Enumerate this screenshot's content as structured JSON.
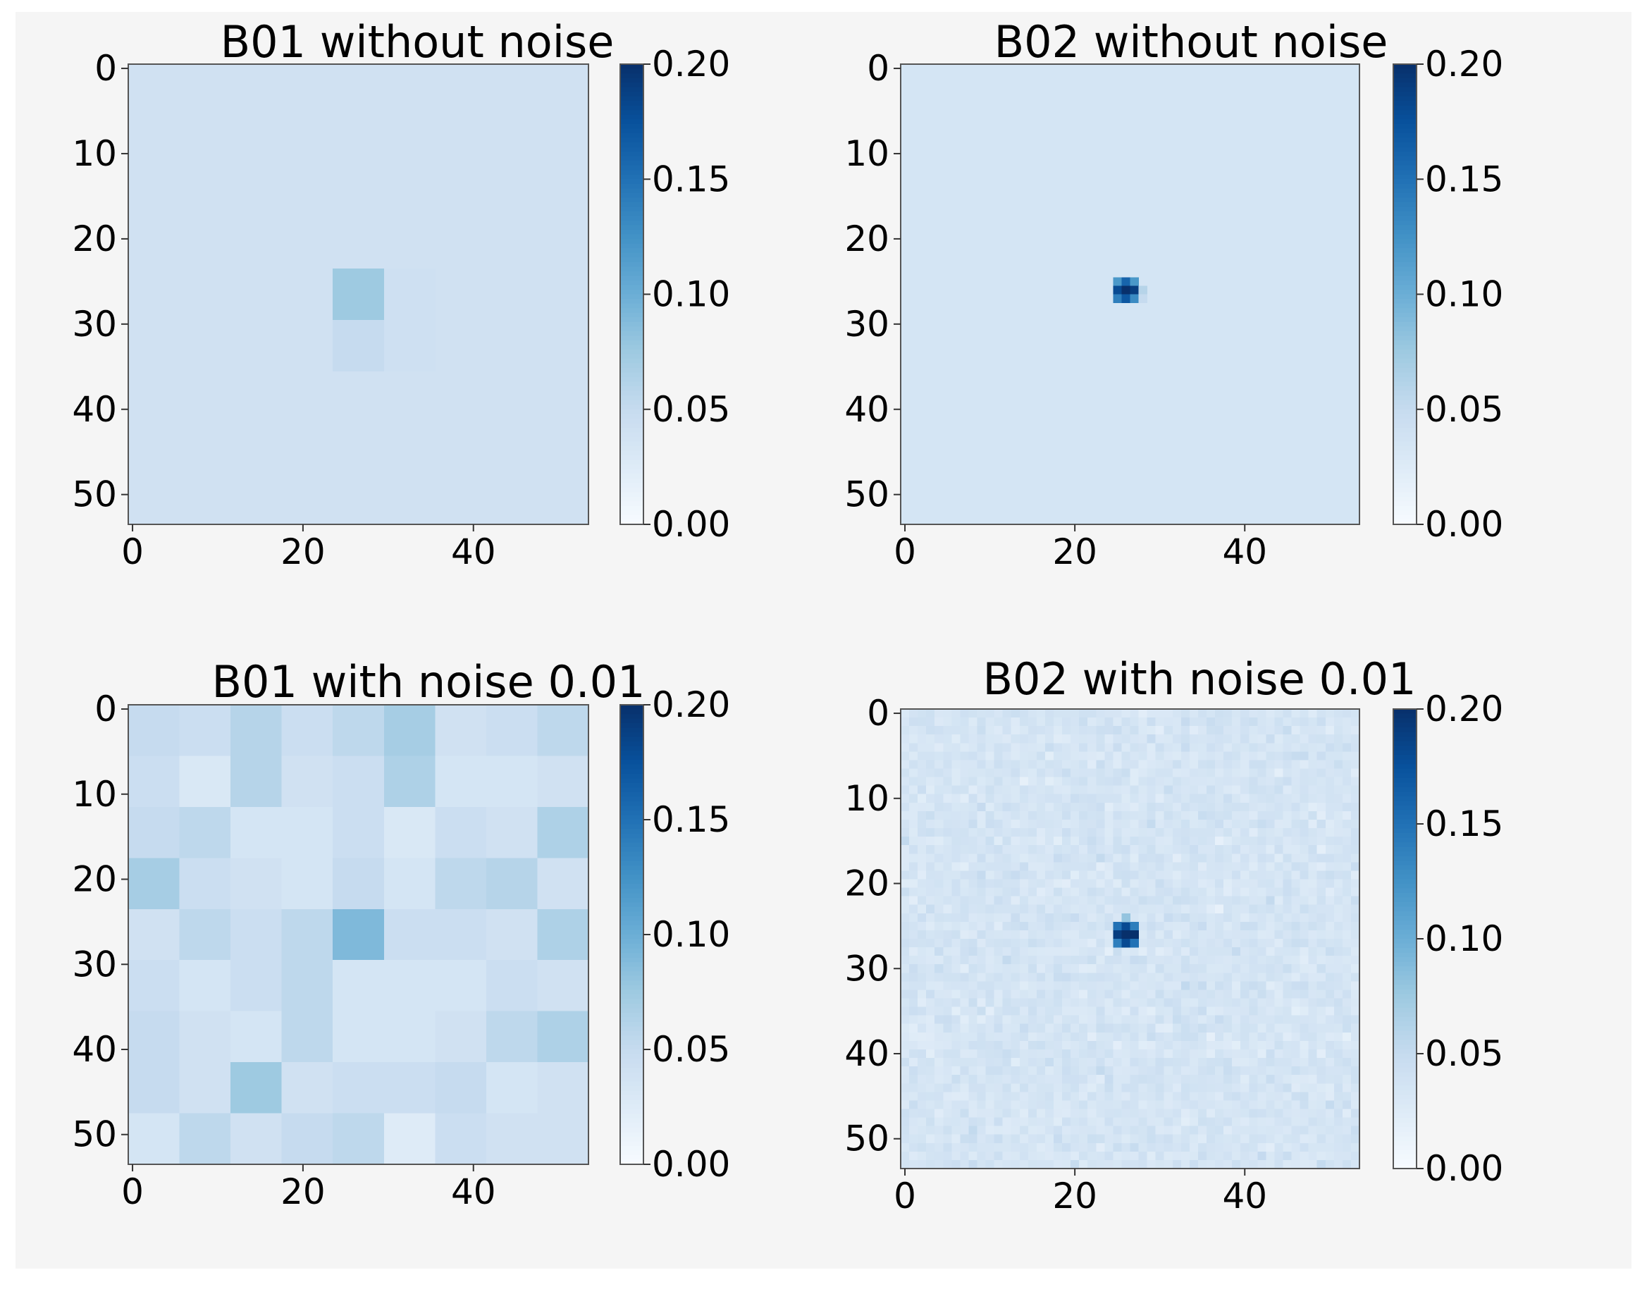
{
  "figure": {
    "background": "#f5f5f5"
  },
  "colormap": {
    "name": "Blues",
    "vmin": 0.0,
    "vmax": 0.2
  },
  "chart_data": [
    {
      "type": "heatmap",
      "title": "B01 without noise",
      "grid_size": 54,
      "xticks": [
        0,
        20,
        40
      ],
      "yticks": [
        0,
        10,
        20,
        30,
        40,
        50
      ],
      "colorbar": {
        "min": 0.0,
        "max": 0.2,
        "ticks": [
          "0.00",
          "0.05",
          "0.10",
          "0.15",
          "0.20"
        ]
      },
      "background_value": 0.04,
      "blocks": [
        {
          "x0": 24,
          "x1": 30,
          "y0": 24,
          "y1": 30,
          "value": 0.075
        },
        {
          "x0": 24,
          "x1": 30,
          "y0": 30,
          "y1": 36,
          "value": 0.05
        },
        {
          "x0": 30,
          "x1": 36,
          "y0": 24,
          "y1": 36,
          "value": 0.042
        }
      ]
    },
    {
      "type": "heatmap",
      "title": "B02 without noise",
      "grid_size": 54,
      "xticks": [
        0,
        20,
        40
      ],
      "yticks": [
        0,
        10,
        20,
        30,
        40,
        50
      ],
      "colorbar": {
        "min": 0.0,
        "max": 0.2,
        "ticks": [
          "0.00",
          "0.05",
          "0.10",
          "0.15",
          "0.20"
        ]
      },
      "background_value": 0.035,
      "pixels": [
        {
          "x": 25,
          "y": 25,
          "value": 0.12
        },
        {
          "x": 26,
          "y": 25,
          "value": 0.16
        },
        {
          "x": 27,
          "y": 25,
          "value": 0.12
        },
        {
          "x": 25,
          "y": 26,
          "value": 0.18
        },
        {
          "x": 26,
          "y": 26,
          "value": 0.2
        },
        {
          "x": 27,
          "y": 26,
          "value": 0.19
        },
        {
          "x": 25,
          "y": 27,
          "value": 0.14
        },
        {
          "x": 26,
          "y": 27,
          "value": 0.17
        },
        {
          "x": 27,
          "y": 27,
          "value": 0.13
        },
        {
          "x": 28,
          "y": 26,
          "value": 0.06
        },
        {
          "x": 28,
          "y": 27,
          "value": 0.05
        }
      ]
    },
    {
      "type": "heatmap",
      "title": "B01 with noise 0.01",
      "grid_size": 54,
      "xticks": [
        0,
        20,
        40
      ],
      "yticks": [
        0,
        10,
        20,
        30,
        40,
        50
      ],
      "colorbar": {
        "min": 0.0,
        "max": 0.2,
        "ticks": [
          "0.00",
          "0.05",
          "0.10",
          "0.15",
          "0.20"
        ]
      },
      "block_size": 6,
      "blocks_grid": [
        [
          0.05,
          0.045,
          0.06,
          0.045,
          0.055,
          0.07,
          0.04,
          0.045,
          0.055
        ],
        [
          0.045,
          0.03,
          0.06,
          0.04,
          0.045,
          0.065,
          0.035,
          0.035,
          0.04
        ],
        [
          0.05,
          0.055,
          0.035,
          0.035,
          0.045,
          0.03,
          0.045,
          0.04,
          0.065
        ],
        [
          0.07,
          0.045,
          0.04,
          0.035,
          0.05,
          0.035,
          0.055,
          0.06,
          0.04
        ],
        [
          0.04,
          0.055,
          0.045,
          0.055,
          0.09,
          0.045,
          0.045,
          0.04,
          0.065
        ],
        [
          0.045,
          0.035,
          0.045,
          0.055,
          0.035,
          0.035,
          0.035,
          0.045,
          0.04
        ],
        [
          0.05,
          0.04,
          0.035,
          0.055,
          0.035,
          0.035,
          0.04,
          0.055,
          0.065
        ],
        [
          0.05,
          0.04,
          0.075,
          0.04,
          0.045,
          0.045,
          0.05,
          0.035,
          0.04
        ],
        [
          0.035,
          0.055,
          0.04,
          0.05,
          0.055,
          0.025,
          0.045,
          0.04,
          0.04
        ]
      ]
    },
    {
      "type": "heatmap",
      "title": "B02 with noise 0.01",
      "grid_size": 54,
      "xticks": [
        0,
        20,
        40
      ],
      "yticks": [
        0,
        10,
        20,
        30,
        40,
        50
      ],
      "colorbar": {
        "min": 0.0,
        "max": 0.2,
        "ticks": [
          "0.00",
          "0.05",
          "0.10",
          "0.15",
          "0.20"
        ]
      },
      "noise": {
        "mean": 0.035,
        "std": 0.01
      },
      "pixels": [
        {
          "x": 25,
          "y": 25,
          "value": 0.15
        },
        {
          "x": 26,
          "y": 25,
          "value": 0.18
        },
        {
          "x": 27,
          "y": 25,
          "value": 0.14
        },
        {
          "x": 25,
          "y": 26,
          "value": 0.19
        },
        {
          "x": 26,
          "y": 26,
          "value": 0.2
        },
        {
          "x": 27,
          "y": 26,
          "value": 0.2
        },
        {
          "x": 25,
          "y": 27,
          "value": 0.14
        },
        {
          "x": 26,
          "y": 27,
          "value": 0.18
        },
        {
          "x": 27,
          "y": 27,
          "value": 0.15
        },
        {
          "x": 26,
          "y": 24,
          "value": 0.08
        }
      ]
    }
  ]
}
